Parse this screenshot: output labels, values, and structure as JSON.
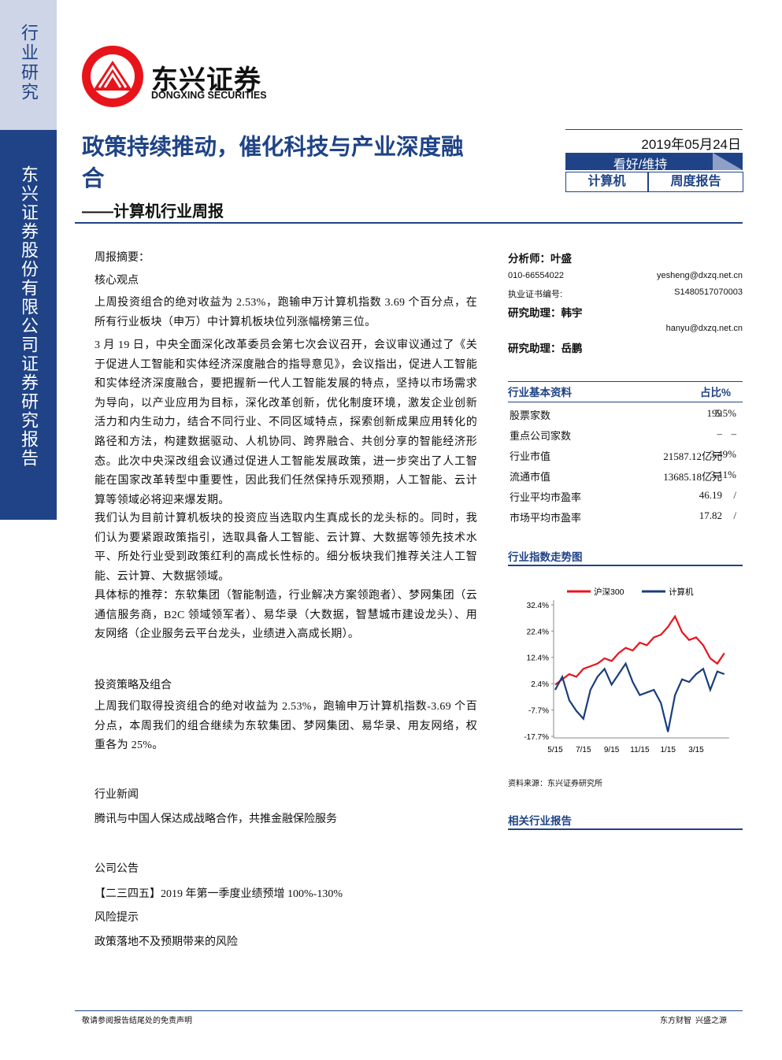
{
  "sidebar": {
    "top": "行业研究",
    "main": "东兴证券股份有限公司证券研究报告"
  },
  "logo": {
    "name": "东兴证券",
    "english": "DONGXING SECURITIES"
  },
  "header": {
    "title": "政策持续推动，催化科技与产业深度融合",
    "subtitle": "——计算机行业周报",
    "date": "2019年05月24日",
    "rating": "看好/维持",
    "industry": "计算机",
    "report_type": "周度报告"
  },
  "body": {
    "summary_label": "周报摘要：",
    "core_heading": "核心观点",
    "core_paragraphs": [
      "上周投资组合的绝对收益为 2.53%，跑输申万计算机指数 3.69 个百分点，在所有行业板块（申万）中计算机板块位列涨幅榜第三位。",
      "3 月 19 日，中央全面深化改革委员会第七次会议召开，会议审议通过了《关于促进人工智能和实体经济深度融合的指导意见》，会议指出，促进人工智能和实体经济深度融合，要把握新一代人工智能发展的特点，坚持以市场需求为导向，以产业应用为目标，深化改革创新，优化制度环境，激发企业创新活力和内生动力，结合不同行业、不同区域特点，探索创新成果应用转化的路径和方法，构建数据驱动、人机协同、跨界融合、共创分享的智能经济形态。此次中央深改组会议通过促进人工智能发展政策，进一步突出了人工智能在国家改革转型中重要性，因此我们任然保持乐观预期，人工智能、云计算等领域必将迎来爆发期。",
      "我们认为目前计算机板块的投资应当选取内生真成长的龙头标的。同时，我们认为要紧跟政策指引，选取具备人工智能、云计算、大数据等领先技术水平、所处行业受到政策红利的高成长性标的。细分板块我们推荐关注人工智能、云计算、大数据领域。",
      "具体标的推荐：东软集团（智能制造，行业解决方案领跑者）、梦网集团（云通信服务商，B2C 领域领军者）、易华录（大数据，智慧城市建设龙头）、用友网络（企业服务云平台龙头，业绩进入高成长期）。"
    ],
    "strategy_heading": "投资策略及组合",
    "strategy_paragraph": "上周我们取得投资组合的绝对收益为 2.53%，跑输申万计算机指数-3.69 个百分点，本周我们的组合继续为东软集团、梦网集团、易华录、用友网络，权重各为 25%。",
    "news_heading": "行业新闻",
    "news": "腾讯与中国人保达成战略合作，共推金融保险服务",
    "announce_heading": "公司公告",
    "announce": "【二三四五】2019 年第一季度业绩预增 100%-130%",
    "risk_heading": "风险提示",
    "risk": "政策落地不及预期带来的风险"
  },
  "analysts": {
    "lead": "分析师：叶盛",
    "phone": "010-66554022",
    "email": "yesheng@dxzq.net.cn",
    "cert_label": "执业证书编号:",
    "cert": "S1480517070003",
    "assistant1": "研究助理：韩宇",
    "email1": "hanyu@dxzq.net.cn",
    "assistant2": "研究助理：岳鹏"
  },
  "table": {
    "header": [
      "行业基本资料",
      "占比%"
    ],
    "rows": [
      [
        "股票家数",
        "199",
        "5.5%"
      ],
      [
        "重点公司家数",
        "–",
        "–"
      ],
      [
        "行业市值",
        "21587.12亿元",
        "3.49%"
      ],
      [
        "流通市值",
        "13685.18亿元",
        "3.11%"
      ],
      [
        "行业平均市盈率",
        "46.19",
        "/"
      ],
      [
        "市场平均市盈率",
        "17.82",
        "/"
      ]
    ]
  },
  "chart_heading": "行业指数走势图",
  "chart": {
    "type": "line",
    "categories": [
      "5/15",
      null,
      null,
      null,
      "7/15",
      null,
      null,
      null,
      "9/15",
      null,
      null,
      null,
      "11/15",
      null,
      null,
      null,
      "1/15",
      null,
      null,
      null,
      "3/15",
      null,
      null,
      null,
      null
    ],
    "series": [
      {
        "name": "沪深300",
        "color": "#e8141b",
        "values": [
          2,
          4,
          6,
          5,
          8,
          9,
          10,
          12,
          11,
          14,
          16,
          15,
          18,
          17,
          20,
          21,
          24,
          28,
          22,
          19,
          20,
          17,
          12,
          10,
          14
        ]
      },
      {
        "name": "计算机",
        "color": "#1a3d7c",
        "values": [
          0,
          5,
          -4,
          -8,
          -11,
          0,
          5,
          8,
          2,
          6,
          10,
          3,
          -2,
          -1,
          0,
          -5,
          -16,
          -2,
          4,
          3,
          6,
          8,
          0,
          7,
          6
        ]
      }
    ],
    "ylim": [
      -17.7,
      32.4
    ],
    "yticks": [
      {
        "value": 32.4,
        "label": "32.4%"
      },
      {
        "value": 22.4,
        "label": "22.4%"
      },
      {
        "value": 12.4,
        "label": "12.4%"
      },
      {
        "value": 2.4,
        "label": "2.4%"
      },
      {
        "value": -7.7,
        "label": "-7.7%"
      },
      {
        "value": -17.7,
        "label": "-17.7%"
      }
    ]
  },
  "chart_source": "资料来源：东兴证券研究所",
  "related_heading": "相关行业报告",
  "footer": {
    "left": "敬请参阅报告结尾处的免责声明",
    "right": "东方财智  兴盛之源"
  }
}
